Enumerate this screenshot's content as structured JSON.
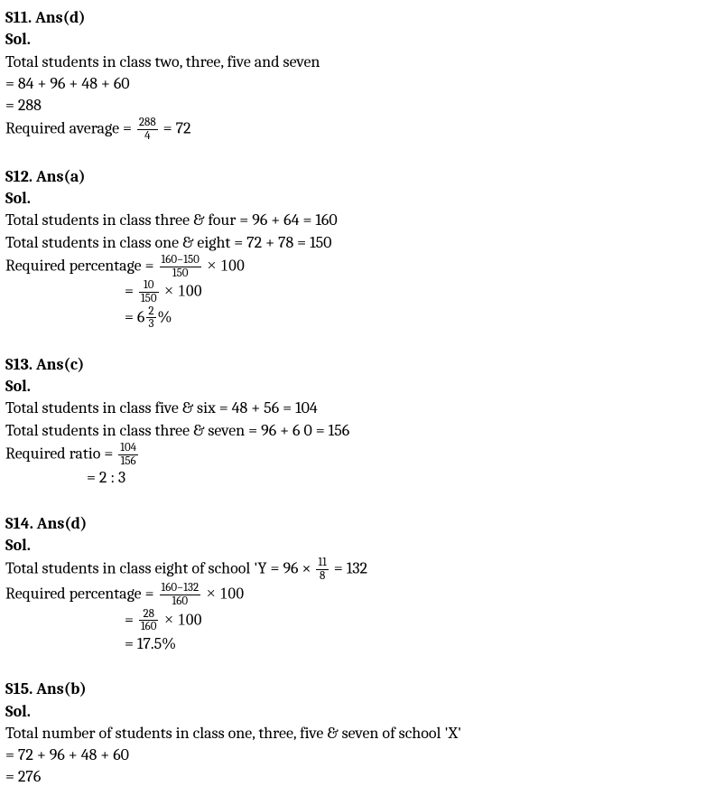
{
  "s11": {
    "header": "S11. Ans(d)",
    "sol": "Sol.",
    "l1": "Total students in class two, three, five and seven",
    "l2": "= 84 + 96 + 48 + 60",
    "l3": "= 288",
    "l4a": "Required average = ",
    "frac1_num": "288",
    "frac1_den": "4",
    "l4b": " = 72"
  },
  "s12": {
    "header": "S12. Ans(a)",
    "sol": "Sol.",
    "l1": "Total students in class three & four = 96 + 64 = 160",
    "l2": "Total students in class one & eight = 72 + 78 = 150",
    "l3a": "Required percentage = ",
    "frac1_num": "160−150",
    "frac1_den": "150",
    "l3b": " × 100",
    "l4a": "= ",
    "frac2_num": "10",
    "frac2_den": "150",
    "l4b": " × 100",
    "l5a": "= 6",
    "frac3_num": "2",
    "frac3_den": "3",
    "l5b": "%"
  },
  "s13": {
    "header": "S13. Ans(c)",
    "sol": "Sol.",
    "l1": "Total students in class five & six = 48 + 56 = 104",
    "l2": "Total students in class three & seven = 96 + 6 0 = 156",
    "l3a": "Required ratio = ",
    "frac1_num": "104",
    "frac1_den": "156",
    "l4": "= 2 : 3"
  },
  "s14": {
    "header": "S14. Ans(d)",
    "sol": "Sol.",
    "l1a": "Total students in class eight of school 'Y = 96 × ",
    "frac1_num": "11",
    "frac1_den": "8",
    "l1b": " =   132",
    "l2a": "Required percentage = ",
    "frac2_num": "160−132",
    "frac2_den": "160",
    "l2b": " × 100",
    "l3a": "= ",
    "frac3_num": "28",
    "frac3_den": "160",
    "l3b": " × 100",
    "l4": "= 17.5%"
  },
  "s15": {
    "header": "S15. Ans(b)",
    "sol": "Sol.",
    "l1": "Total number of students in class one, three, five & seven of school 'X'",
    "l2": "= 72 + 96 + 48 + 60",
    "l3": "= 276"
  }
}
